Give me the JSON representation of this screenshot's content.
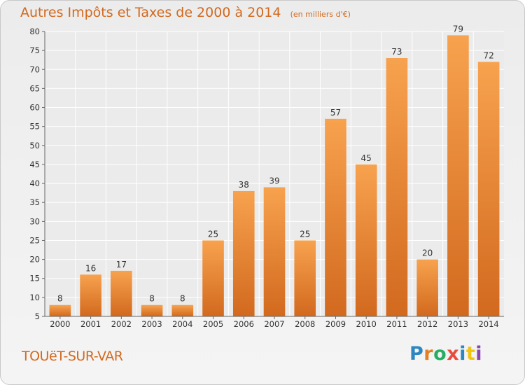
{
  "chart_data": {
    "type": "bar",
    "title": "Autres Impôts et Taxes de 2000 à 2014",
    "subtitle": "(en milliers d'€)",
    "categories": [
      "2000",
      "2001",
      "2002",
      "2003",
      "2004",
      "2005",
      "2006",
      "2007",
      "2008",
      "2009",
      "2010",
      "2011",
      "2012",
      "2013",
      "2014"
    ],
    "values": [
      8,
      16,
      17,
      8,
      8,
      25,
      38,
      39,
      25,
      57,
      45,
      73,
      20,
      79,
      72
    ],
    "ylim": [
      5,
      80
    ],
    "yticks": [
      5,
      10,
      15,
      20,
      25,
      30,
      35,
      40,
      45,
      50,
      55,
      60,
      65,
      70,
      75,
      80
    ],
    "grid": true,
    "xlabel": "",
    "ylabel": "",
    "bar_color_light": "#f7a24e",
    "bar_color_dark": "#d2691e"
  },
  "footer": {
    "commune": "TOUëT-SUR-VAR",
    "logo_text": "Proxiti",
    "logo_letters": [
      {
        "ch": "P",
        "color": "#2e86c1"
      },
      {
        "ch": "r",
        "color": "#e67e22"
      },
      {
        "ch": "o",
        "color": "#27ae60"
      },
      {
        "ch": "x",
        "color": "#e74c3c"
      },
      {
        "ch": "i",
        "color": "#2e86c1"
      },
      {
        "ch": "t",
        "color": "#f1c40f"
      },
      {
        "ch": "i",
        "color": "#8e44ad"
      }
    ]
  }
}
